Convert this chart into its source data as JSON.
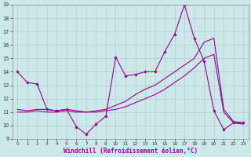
{
  "background_color": "#cde8e8",
  "grid_color": "#b0cccc",
  "line_color": "#990099",
  "xlabel": "Windchill (Refroidissement éolien,°C)",
  "xlim": [
    -0.5,
    23.5
  ],
  "ylim": [
    9,
    19
  ],
  "xticks": [
    0,
    1,
    2,
    3,
    4,
    5,
    6,
    7,
    8,
    9,
    10,
    11,
    12,
    13,
    14,
    15,
    16,
    17,
    18,
    19,
    20,
    21,
    22,
    23
  ],
  "yticks": [
    9,
    10,
    11,
    12,
    13,
    14,
    15,
    16,
    17,
    18,
    19
  ],
  "line1_y": [
    14.0,
    13.2,
    13.1,
    11.2,
    11.1,
    11.2,
    9.9,
    9.35,
    10.1,
    10.7,
    15.1,
    13.7,
    13.8,
    14.0,
    14.0,
    15.5,
    16.8,
    19.0,
    16.5,
    14.8,
    11.1,
    9.7,
    10.2,
    10.2
  ],
  "line2_y": [
    11.0,
    11.0,
    11.1,
    11.0,
    11.0,
    11.1,
    11.0,
    11.0,
    11.0,
    11.1,
    11.2,
    11.4,
    11.7,
    12.0,
    12.3,
    12.7,
    13.2,
    13.7,
    14.3,
    15.0,
    15.3,
    11.0,
    10.2,
    10.1
  ],
  "line3_y": [
    11.2,
    11.1,
    11.2,
    11.2,
    11.1,
    11.2,
    11.1,
    11.0,
    11.1,
    11.2,
    11.5,
    11.8,
    12.3,
    12.7,
    13.0,
    13.5,
    14.0,
    14.5,
    15.0,
    16.2,
    16.5,
    11.2,
    10.3,
    10.2
  ]
}
